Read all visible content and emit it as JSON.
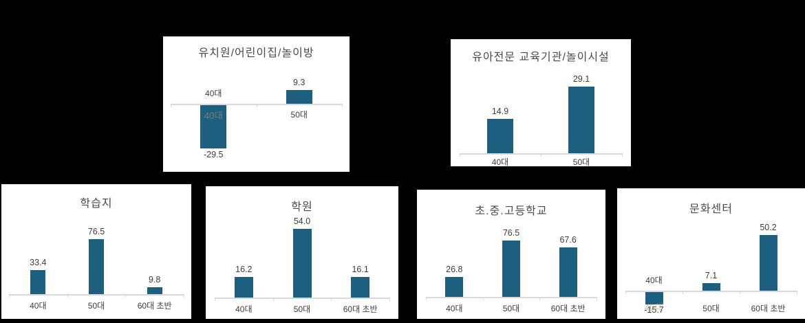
{
  "canvas": {
    "background": "#000000",
    "panel_background": "#ffffff"
  },
  "colors": {
    "bar": "#1c5f7e",
    "axis": "#d6dadd",
    "title_text": "#4a4a4a",
    "label_text": "#3d3d3d",
    "ghost_text": "rgba(196,150,110,0.55)"
  },
  "chart_data": [
    {
      "type": "bar",
      "title": "유치원/어린이집/놀이방",
      "categories": [
        "40대",
        "50대"
      ],
      "values": [
        -29.5,
        9.3
      ],
      "ylim": [
        -40,
        20
      ],
      "ghost_labels": [
        "40대",
        null
      ],
      "grid": false,
      "legend": "none"
    },
    {
      "type": "bar",
      "title": "유아전문 교육기관/놀이시설",
      "categories": [
        "40대",
        "50대"
      ],
      "values": [
        14.9,
        29.1
      ],
      "ylim": [
        0,
        40
      ],
      "ghost_labels": [
        null,
        null
      ],
      "grid": false,
      "legend": "none"
    },
    {
      "type": "bar",
      "title": "학습지",
      "categories": [
        "40대",
        "50대",
        "60대 초반"
      ],
      "values": [
        33.4,
        76.5,
        9.8
      ],
      "ylim": [
        0,
        100
      ],
      "ghost_labels": [
        null,
        null,
        null
      ],
      "grid": false,
      "legend": "none"
    },
    {
      "type": "bar",
      "title": "학원",
      "categories": [
        "40대",
        "50대",
        "60대 초반"
      ],
      "values": [
        16.2,
        54.0,
        16.1
      ],
      "ylim": [
        0,
        57
      ],
      "ghost_labels": [
        null,
        null,
        null
      ],
      "grid": false,
      "legend": "none"
    },
    {
      "type": "bar",
      "title": "초.중.고등학교",
      "categories": [
        "40대",
        "50대",
        "60대 초반"
      ],
      "values": [
        26.8,
        76.5,
        67.6
      ],
      "ylim": [
        0,
        82
      ],
      "ghost_labels": [
        null,
        null,
        null
      ],
      "grid": false,
      "legend": "none"
    },
    {
      "type": "bar",
      "title": "문화센터",
      "categories": [
        "40대",
        "50대",
        "60대 초반"
      ],
      "values": [
        -15.7,
        7.1,
        50.2
      ],
      "ylim": [
        -22,
        52
      ],
      "ghost_labels": [
        "40대",
        null,
        null
      ],
      "grid": false,
      "legend": "none"
    }
  ]
}
